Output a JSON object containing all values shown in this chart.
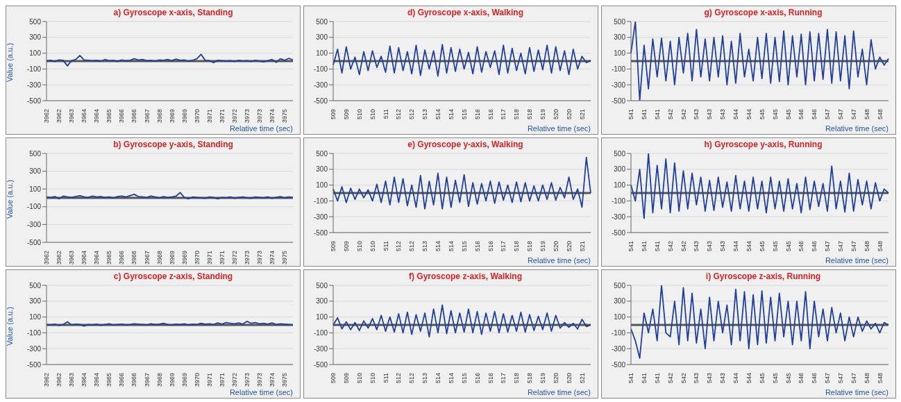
{
  "chart_data": [
    {
      "type": "line",
      "title": "a) Gyroscope x-axis, Standing",
      "ylabel": "Value (a.u.)",
      "xlabel": "Relative time (sec)",
      "ylim": [
        -500,
        500
      ],
      "yticks": [
        -500,
        -300,
        -100,
        100,
        300,
        500
      ],
      "grid": "y",
      "marker": "none",
      "categories": [
        "3962",
        null,
        null,
        "3962",
        null,
        null,
        "3963",
        null,
        null,
        "3964",
        null,
        null,
        "3964",
        null,
        null,
        "3965",
        null,
        null,
        "3966",
        null,
        null,
        "3966",
        null,
        null,
        "3967",
        null,
        null,
        "3968",
        null,
        null,
        "3969",
        null,
        null,
        "3969",
        null,
        null,
        "3970",
        null,
        null,
        "3971",
        null,
        null,
        "3971",
        null,
        null,
        "3972",
        null,
        null,
        "3973",
        null,
        null,
        "3973",
        null,
        null,
        "3974",
        null,
        null,
        "3975",
        null,
        null
      ],
      "series": [
        {
          "color": "#1f3f9f",
          "values": [
            5,
            10,
            -5,
            15,
            10,
            -60,
            5,
            20,
            70,
            15,
            10,
            5,
            10,
            0,
            20,
            5,
            10,
            -5,
            15,
            5,
            10,
            30,
            15,
            20,
            5,
            10,
            0,
            15,
            10,
            20,
            5,
            25,
            10,
            15,
            0,
            10,
            30,
            85,
            10,
            5,
            -20,
            10,
            5,
            0,
            5,
            -5,
            10,
            0,
            5,
            -5,
            10,
            0,
            -10,
            5,
            20,
            -15,
            30,
            10,
            35,
            15
          ]
        }
      ],
      "ref_lines": [
        {
          "axis": "y",
          "value": 0,
          "color": "#555555"
        }
      ]
    },
    {
      "type": "line",
      "title": "d) Gyroscope x-axis, Walking",
      "xlabel": "Relative time (sec)",
      "ylim": [
        -500,
        500
      ],
      "yticks": [
        -500,
        -300,
        -100,
        100,
        300,
        500
      ],
      "grid": "y",
      "marker": "none",
      "categories": [
        "509",
        null,
        null,
        "509",
        null,
        null,
        "510",
        null,
        null,
        "510",
        null,
        null,
        "511",
        null,
        null,
        "512",
        null,
        null,
        "512",
        null,
        null,
        "513",
        null,
        null,
        "514",
        null,
        null,
        "514",
        null,
        null,
        "515",
        null,
        null,
        "516",
        null,
        null,
        "516",
        null,
        null,
        "517",
        null,
        null,
        "518",
        null,
        null,
        "518",
        null,
        null,
        "519",
        null,
        null,
        "520",
        null,
        null,
        "520",
        null,
        null,
        "521",
        null,
        null
      ],
      "series": [
        {
          "color": "#1f3f9f",
          "values": [
            -50,
            150,
            -150,
            180,
            -100,
            50,
            -170,
            120,
            -120,
            130,
            -80,
            60,
            -140,
            190,
            -150,
            170,
            -120,
            120,
            -160,
            200,
            -180,
            140,
            -100,
            130,
            -190,
            210,
            -150,
            170,
            -130,
            150,
            -100,
            110,
            -160,
            180,
            -140,
            120,
            -80,
            130,
            -170,
            200,
            -150,
            160,
            -120,
            100,
            -160,
            170,
            -130,
            140,
            -110,
            200,
            -150,
            180,
            -120,
            130,
            -170,
            150,
            -100,
            60,
            -20,
            10
          ]
        }
      ],
      "ref_lines": [
        {
          "axis": "y",
          "value": 0,
          "color": "#555555"
        }
      ]
    },
    {
      "type": "line",
      "title": "g) Gyroscope x-axis, Running",
      "xlabel": "Relative time (sec)",
      "ylim": [
        -500,
        500
      ],
      "yticks": [
        -500,
        -300,
        -100,
        100,
        300,
        500
      ],
      "grid": "y",
      "marker": "none",
      "categories": [
        "541",
        null,
        null,
        "541",
        null,
        null,
        "541",
        null,
        null,
        "542",
        null,
        null,
        "542",
        null,
        null,
        "543",
        null,
        null,
        "543",
        null,
        null,
        "543",
        null,
        null,
        "544",
        null,
        null,
        "544",
        null,
        null,
        "545",
        null,
        null,
        "545",
        null,
        null,
        "545",
        null,
        null,
        "546",
        null,
        null,
        "546",
        null,
        null,
        "547",
        null,
        null,
        "547",
        null,
        null,
        "547",
        null,
        null,
        "548",
        null,
        null,
        "548",
        null,
        null
      ],
      "series": [
        {
          "color": "#1f3f9f",
          "values": [
            100,
            500,
            -500,
            200,
            -350,
            280,
            -200,
            290,
            -250,
            250,
            -300,
            300,
            -150,
            350,
            -250,
            400,
            -200,
            280,
            -250,
            300,
            -200,
            320,
            -300,
            250,
            -280,
            350,
            -200,
            150,
            -250,
            300,
            -220,
            350,
            -280,
            300,
            -260,
            380,
            -300,
            320,
            -200,
            340,
            -300,
            370,
            -250,
            350,
            -230,
            400,
            -280,
            370,
            -250,
            320,
            -350,
            380,
            -200,
            150,
            -300,
            270,
            -100,
            50,
            -50,
            30
          ]
        }
      ],
      "ref_lines": [
        {
          "axis": "y",
          "value": 0,
          "color": "#555555"
        }
      ]
    },
    {
      "type": "line",
      "title": "b) Gyroscope y-axis, Standing",
      "ylabel": "Value (a.u.)",
      "ylim": [
        -500,
        500
      ],
      "yticks": [
        -500,
        -300,
        -100,
        100,
        300,
        500
      ],
      "grid": "y",
      "marker": "none",
      "categories": [
        "3962",
        null,
        null,
        "3962",
        null,
        null,
        "3963",
        null,
        null,
        "3964",
        null,
        null,
        "3964",
        null,
        null,
        "3965",
        null,
        null,
        "3966",
        null,
        null,
        "3966",
        null,
        null,
        "3967",
        null,
        null,
        "3968",
        null,
        null,
        "3969",
        null,
        null,
        "3969",
        null,
        null,
        "3970",
        null,
        null,
        "3971",
        null,
        null,
        "3971",
        null,
        null,
        "3972",
        null,
        null,
        "3973",
        null,
        null,
        "3973",
        null,
        null,
        "3974",
        null,
        null,
        "3975",
        null,
        null
      ],
      "series": [
        {
          "color": "#1f3f9f",
          "values": [
            10,
            5,
            15,
            -10,
            20,
            10,
            5,
            15,
            25,
            10,
            5,
            20,
            10,
            15,
            5,
            10,
            0,
            15,
            20,
            10,
            25,
            40,
            15,
            10,
            5,
            20,
            10,
            0,
            15,
            5,
            10,
            20,
            60,
            5,
            -10,
            10,
            5,
            0,
            -5,
            10,
            5,
            -10,
            5,
            0,
            10,
            -5,
            5,
            10,
            0,
            -5,
            10,
            5,
            0,
            10,
            -5,
            5,
            15,
            0,
            10,
            5
          ]
        }
      ],
      "ref_lines": [
        {
          "axis": "y",
          "value": 0,
          "color": "#555555"
        }
      ]
    },
    {
      "type": "line",
      "title": "e) Gyroscope y-axis, Walking",
      "xlabel": "Relative time (sec)",
      "ylim": [
        -500,
        500
      ],
      "yticks": [
        -500,
        -300,
        -100,
        100,
        300,
        500
      ],
      "grid": "y",
      "marker": "none",
      "categories": [
        "509",
        null,
        null,
        "509",
        null,
        null,
        "510",
        null,
        null,
        "510",
        null,
        null,
        "511",
        null,
        null,
        "512",
        null,
        null,
        "512",
        null,
        null,
        "513",
        null,
        null,
        "514",
        null,
        null,
        "514",
        null,
        null,
        "515",
        null,
        null,
        "516",
        null,
        null,
        "516",
        null,
        null,
        "517",
        null,
        null,
        "518",
        null,
        null,
        "518",
        null,
        null,
        "519",
        null,
        null,
        "520",
        null,
        null,
        "520",
        null,
        null,
        "521",
        null,
        null
      ],
      "series": [
        {
          "color": "#1f3f9f",
          "values": [
            50,
            -100,
            80,
            -120,
            60,
            -80,
            50,
            -60,
            40,
            -100,
            110,
            -120,
            150,
            -150,
            200,
            -120,
            180,
            -160,
            100,
            -180,
            220,
            -200,
            150,
            -150,
            250,
            -200,
            200,
            -180,
            160,
            -120,
            230,
            -170,
            130,
            -140,
            120,
            -100,
            150,
            -130,
            140,
            -90,
            100,
            -120,
            140,
            -110,
            130,
            -100,
            90,
            -100,
            100,
            -80,
            130,
            -90,
            70,
            -60,
            200,
            -80,
            50,
            -180,
            450,
            0
          ]
        }
      ],
      "ref_lines": [
        {
          "axis": "y",
          "value": 0,
          "color": "#555555"
        }
      ]
    },
    {
      "type": "line",
      "title": "h) Gyroscope y-axis, Running",
      "xlabel": "Relative time (sec)",
      "ylim": [
        -500,
        500
      ],
      "yticks": [
        -500,
        -300,
        -100,
        100,
        300,
        500
      ],
      "grid": "y",
      "marker": "none",
      "categories": [
        "541",
        null,
        null,
        "541",
        null,
        null,
        "541",
        null,
        null,
        "542",
        null,
        null,
        "542",
        null,
        null,
        "543",
        null,
        null,
        "543",
        null,
        null,
        "543",
        null,
        null,
        "544",
        null,
        null,
        "544",
        null,
        null,
        "545",
        null,
        null,
        "545",
        null,
        null,
        "545",
        null,
        null,
        "546",
        null,
        null,
        "546",
        null,
        null,
        "547",
        null,
        null,
        "547",
        null,
        null,
        "547",
        null,
        null,
        "548",
        null,
        null,
        "548",
        null,
        null
      ],
      "series": [
        {
          "color": "#1f3f9f",
          "values": [
            100,
            -100,
            300,
            -320,
            500,
            -250,
            350,
            -200,
            430,
            -250,
            380,
            -230,
            280,
            -200,
            250,
            -150,
            200,
            -230,
            160,
            -220,
            200,
            -180,
            140,
            -230,
            220,
            -200,
            150,
            -230,
            200,
            -200,
            150,
            -250,
            200,
            -200,
            150,
            -230,
            180,
            -200,
            120,
            -250,
            200,
            -210,
            150,
            -170,
            120,
            -230,
            340,
            -200,
            150,
            -240,
            250,
            -230,
            170,
            -150,
            150,
            -200,
            130,
            -100,
            50,
            0
          ]
        }
      ],
      "ref_lines": [
        {
          "axis": "y",
          "value": 0,
          "color": "#555555"
        }
      ]
    },
    {
      "type": "line",
      "title": "c) Gyroscope z-axis, Standing",
      "ylabel": "Value (a.u.)",
      "xlabel": "Relative time (sec)",
      "ylim": [
        -500,
        500
      ],
      "yticks": [
        -500,
        -300,
        -100,
        100,
        300,
        500
      ],
      "grid": "y",
      "marker": "none",
      "categories": [
        "3962",
        null,
        null,
        "3962",
        null,
        null,
        "3963",
        null,
        null,
        "3964",
        null,
        null,
        "3964",
        null,
        null,
        "3965",
        null,
        null,
        "3966",
        null,
        null,
        "3966",
        null,
        null,
        "3967",
        null,
        null,
        "3968",
        null,
        null,
        "3969",
        null,
        null,
        "3969",
        null,
        null,
        "3970",
        null,
        null,
        "3971",
        null,
        null,
        "3971",
        null,
        null,
        "3972",
        null,
        null,
        "3973",
        null,
        null,
        "3973",
        null,
        null,
        "3974",
        null,
        null,
        "3975",
        null,
        null
      ],
      "series": [
        {
          "color": "#1f3f9f",
          "values": [
            5,
            0,
            10,
            -5,
            5,
            40,
            0,
            10,
            5,
            -15,
            5,
            0,
            10,
            -5,
            5,
            15,
            0,
            5,
            10,
            0,
            5,
            15,
            10,
            5,
            0,
            15,
            5,
            10,
            20,
            5,
            0,
            10,
            5,
            15,
            0,
            10,
            5,
            20,
            10,
            15,
            5,
            25,
            10,
            30,
            20,
            15,
            25,
            10,
            45,
            20,
            30,
            15,
            20,
            10,
            25,
            5,
            15,
            10,
            5,
            0
          ]
        }
      ],
      "ref_lines": [
        {
          "axis": "y",
          "value": 0,
          "color": "#555555"
        }
      ]
    },
    {
      "type": "line",
      "title": "f) Gyroscope z-axis, Walking",
      "xlabel": "Relative time (sec)",
      "ylim": [
        -500,
        500
      ],
      "yticks": [
        -500,
        -300,
        -100,
        100,
        300,
        500
      ],
      "grid": "y",
      "marker": "none",
      "categories": [
        "509",
        null,
        null,
        "509",
        null,
        null,
        "510",
        null,
        null,
        "510",
        null,
        null,
        "511",
        null,
        null,
        "512",
        null,
        null,
        "512",
        null,
        null,
        "513",
        null,
        null,
        "514",
        null,
        null,
        "514",
        null,
        null,
        "515",
        null,
        null,
        "516",
        null,
        null,
        "516",
        null,
        null,
        "517",
        null,
        null,
        "518",
        null,
        null,
        "518",
        null,
        null,
        "519",
        null,
        null,
        "520",
        null,
        null,
        "520",
        null,
        null,
        "521",
        null,
        null
      ],
      "series": [
        {
          "color": "#1f3f9f",
          "values": [
            0,
            90,
            -50,
            40,
            -60,
            30,
            -70,
            50,
            -40,
            80,
            -60,
            120,
            -80,
            100,
            -90,
            140,
            -100,
            160,
            -120,
            130,
            -80,
            150,
            -150,
            200,
            -100,
            250,
            -110,
            180,
            -100,
            150,
            -90,
            200,
            -100,
            170,
            -120,
            150,
            -80,
            170,
            -100,
            140,
            -90,
            120,
            -80,
            160,
            -90,
            130,
            -70,
            110,
            -60,
            150,
            -80,
            120,
            -40,
            30,
            -30,
            20,
            -50,
            70,
            -20,
            0
          ]
        }
      ],
      "ref_lines": [
        {
          "axis": "y",
          "value": 0,
          "color": "#555555"
        }
      ]
    },
    {
      "type": "line",
      "title": "i) Gyroscope z-axis, Running",
      "xlabel": "Relative time (sec)",
      "ylim": [
        -500,
        500
      ],
      "yticks": [
        -500,
        -300,
        -100,
        100,
        300,
        500
      ],
      "grid": "y",
      "marker": "none",
      "categories": [
        "541",
        null,
        null,
        "541",
        null,
        null,
        "541",
        null,
        null,
        "542",
        null,
        null,
        "542",
        null,
        null,
        "543",
        null,
        null,
        "543",
        null,
        null,
        "543",
        null,
        null,
        "544",
        null,
        null,
        "544",
        null,
        null,
        "545",
        null,
        null,
        "545",
        null,
        null,
        "545",
        null,
        null,
        "546",
        null,
        null,
        "546",
        null,
        null,
        "547",
        null,
        null,
        "547",
        null,
        null,
        "547",
        null,
        null,
        "548",
        null,
        null,
        "548",
        null,
        null
      ],
      "series": [
        {
          "color": "#1f3f9f",
          "values": [
            -50,
            -200,
            -420,
            150,
            -100,
            200,
            -200,
            500,
            -100,
            -150,
            300,
            -250,
            470,
            -200,
            400,
            -230,
            200,
            -300,
            350,
            -200,
            300,
            -100,
            250,
            -250,
            450,
            -200,
            420,
            -300,
            380,
            -250,
            430,
            -230,
            350,
            -200,
            400,
            -150,
            300,
            -250,
            300,
            -200,
            420,
            -300,
            300,
            -150,
            200,
            -200,
            220,
            -100,
            150,
            -200,
            100,
            -150,
            100,
            -80,
            50,
            -50,
            20,
            -100,
            30,
            0
          ]
        }
      ],
      "ref_lines": [
        {
          "axis": "y",
          "value": 0,
          "color": "#555555"
        }
      ]
    }
  ]
}
